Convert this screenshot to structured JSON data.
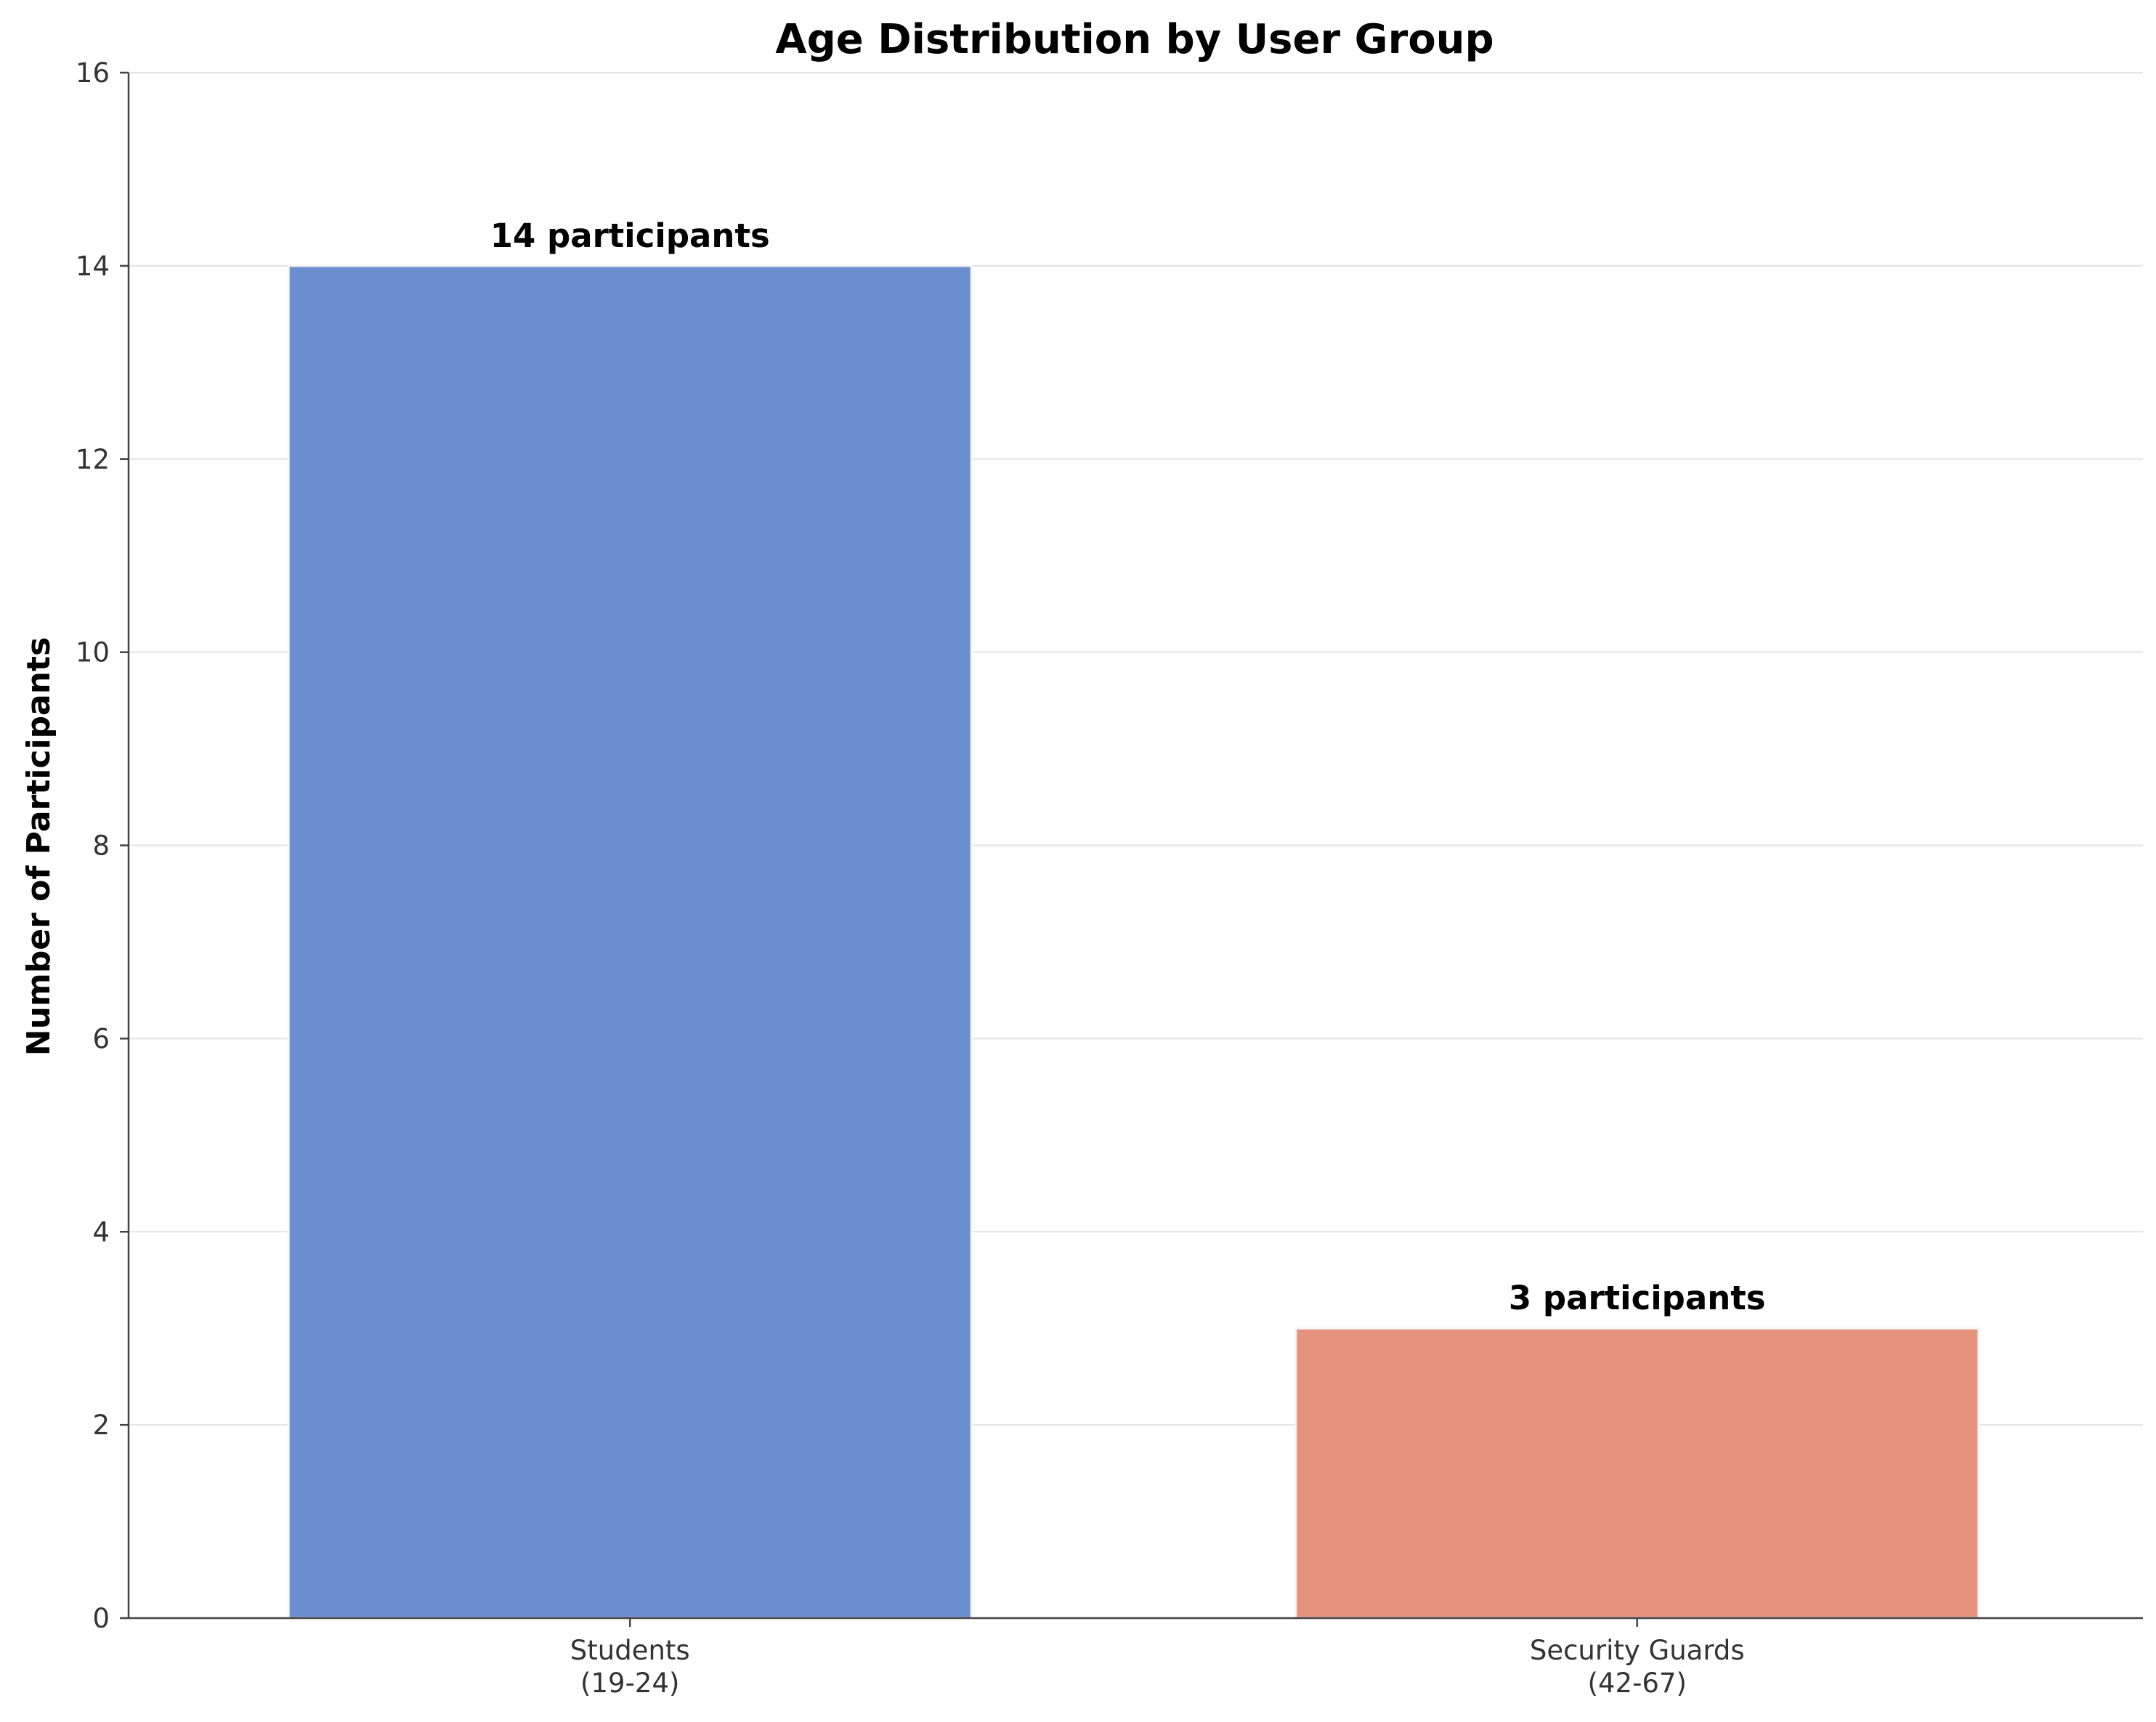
{
  "chart_data": {
    "type": "bar",
    "title": "Age Distribution by User Group",
    "xlabel": "",
    "ylabel": "Number of Participants",
    "ylim": [
      0,
      16
    ],
    "yticks": [
      0,
      2,
      4,
      6,
      8,
      10,
      12,
      14,
      16
    ],
    "grid": "horizontal",
    "categories": [
      {
        "line1": "Students",
        "line2": "(19-24)"
      },
      {
        "line1": "Security Guards",
        "line2": "(42-67)"
      }
    ],
    "values": [
      14,
      3
    ],
    "bar_labels": [
      "14 participants",
      "3 participants"
    ],
    "colors": [
      "#6a8ecf",
      "#e5937f"
    ]
  }
}
